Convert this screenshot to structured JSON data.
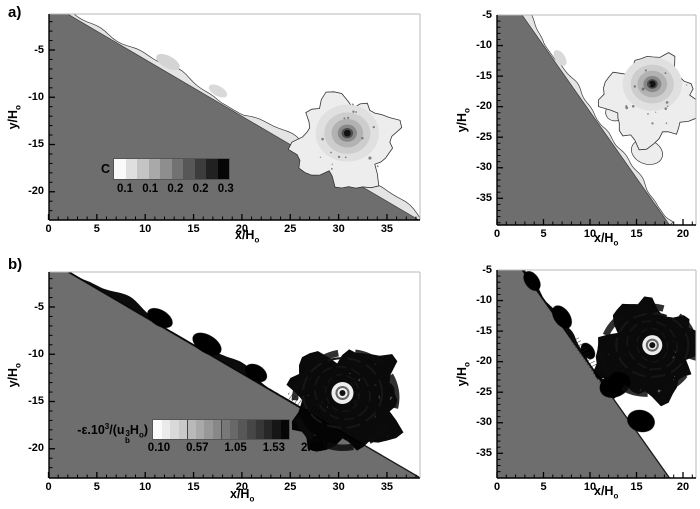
{
  "panels": {
    "a": {
      "label": "a)"
    },
    "b": {
      "label": "b)"
    }
  },
  "chart_data": [
    {
      "id": "a-left",
      "type": "contour-field",
      "field": "C (concentration of gravity current over slope)",
      "xlabel": "x/H_[o]",
      "ylabel": "y/H_[o]",
      "xlim": [
        0,
        38.4
      ],
      "ylim": [
        -23,
        -1.2
      ],
      "xticks": [
        0,
        5,
        10,
        15,
        20,
        25,
        30,
        35
      ],
      "yticks": [
        -5,
        -10,
        -15,
        -20
      ],
      "minor_tick_step": 1,
      "grid": false,
      "slope_surface": {
        "from_xy": [
          2.0,
          -1.2
        ],
        "to_xy": [
          38.3,
          -23.0
        ]
      },
      "vortex_center_xy": [
        30.9,
        -13.8
      ],
      "shading": "light gray current hugging slope with billows; detached vortex cloud with dark core",
      "colorbar": {
        "label": "C",
        "tick_labels": [
          "0.1",
          "0.1",
          "0.2",
          "0.2",
          "0.3"
        ],
        "min_shade": "#ffffff",
        "max_shade": "#000000"
      }
    },
    {
      "id": "a-right",
      "type": "contour-field",
      "field": "C (concentration, steeper slope case)",
      "xlabel": "x/H_[o]",
      "ylabel": "y/H_[o]",
      "xlim": [
        0,
        21.4
      ],
      "ylim": [
        -39.4,
        -5
      ],
      "xticks": [
        0,
        5,
        10,
        15,
        20
      ],
      "yticks": [
        -5,
        -10,
        -15,
        -20,
        -25,
        -30,
        -35
      ],
      "minor_tick_step": 1,
      "grid": false,
      "slope_surface": {
        "from_xy": [
          2.7,
          -5.0
        ],
        "to_xy": [
          18.55,
          -39.4
        ]
      },
      "vortex_center_xy": [
        16.7,
        -16.3
      ],
      "shading": "light gray current along slope; detached spiral vortex cloud with dark core",
      "colorbar": null
    },
    {
      "id": "b-left",
      "type": "contour-field",
      "field": "-ε·10³/(ub³Ho) (dissipation over slope)",
      "xlabel": "x/H_[o]",
      "ylabel": "y/H_[o]",
      "xlim": [
        0,
        38.4
      ],
      "ylim": [
        -23,
        -1.2
      ],
      "xticks": [
        0,
        5,
        10,
        15,
        20,
        25,
        30,
        35
      ],
      "yticks": [
        -5,
        -10,
        -15,
        -20
      ],
      "minor_tick_step": 1,
      "grid": false,
      "slope_surface": {
        "from_xy": [
          2.0,
          -1.2
        ],
        "to_xy": [
          38.3,
          -23.0
        ]
      },
      "vortex_center_xy": [
        30.4,
        -14.1
      ],
      "shading": "dark speckled dissipation patches along slope; turbulent swirling vortex with light eye",
      "colorbar": {
        "label": "-ε.10^[3]/(u~[3|b]H_[o])",
        "tick_labels": [
          "0.10",
          "0.57",
          "1.05",
          "1.53",
          "2.00"
        ],
        "min_shade": "#ffffff",
        "max_shade": "#000000"
      }
    },
    {
      "id": "b-right",
      "type": "contour-field",
      "field": "-ε·10³/(ub³Ho) (dissipation, steeper slope case)",
      "xlabel": "x/H_[o]",
      "ylabel": "y/H_[o]",
      "xlim": [
        0,
        21.4
      ],
      "ylim": [
        -39.4,
        -5
      ],
      "xticks": [
        0,
        5,
        10,
        15,
        20
      ],
      "yticks": [
        -5,
        -10,
        -15,
        -20,
        -25,
        -30,
        -35
      ],
      "minor_tick_step": 1,
      "grid": false,
      "slope_surface": {
        "from_xy": [
          2.7,
          -5.0
        ],
        "to_xy": [
          18.55,
          -39.4
        ]
      },
      "vortex_center_xy": [
        16.7,
        -17.3
      ],
      "shading": "dark speckled dissipation along slope; turbulent swirling vortex with light eye",
      "colorbar": null
    }
  ],
  "colors": {
    "slope_fill": "#6e6e6e",
    "axis": "#000000",
    "faint_border": "#b8b8b8",
    "current_light": "#e4e4e4",
    "background": "#ffffff"
  }
}
